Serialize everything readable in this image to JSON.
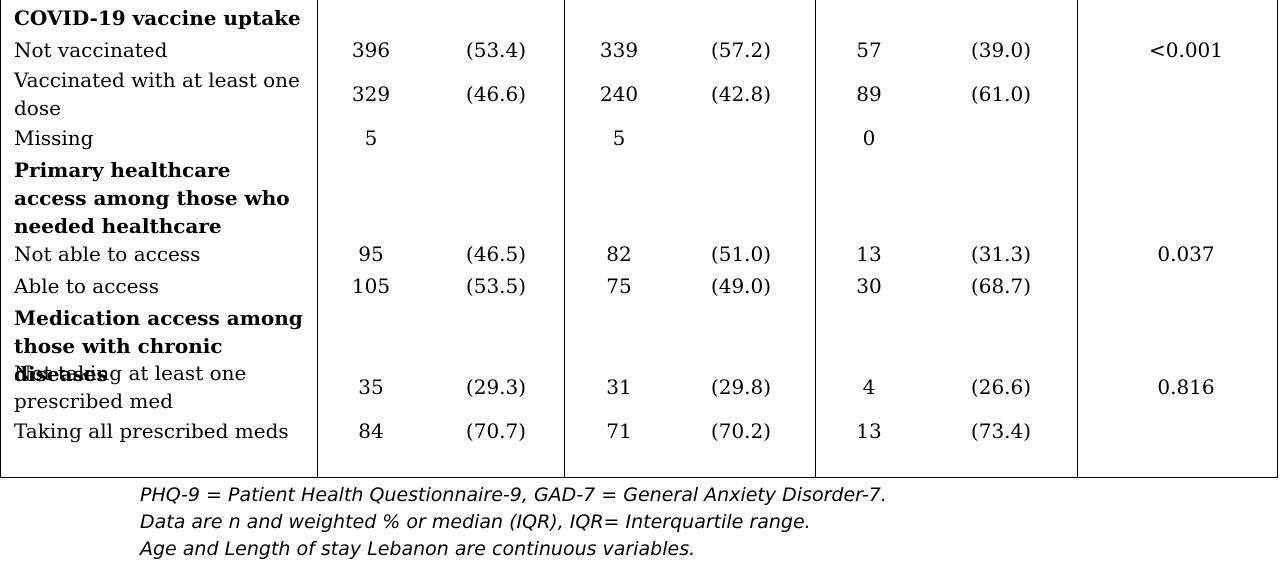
{
  "sections": [
    {
      "heading": "COVID-19 vaccine uptake",
      "rows": [
        {
          "label": "Not vaccinated",
          "n1": "396",
          "p1": "(53.4)",
          "n2": "339",
          "p2": "(57.2)",
          "n3": "57",
          "p3": "(39.0)",
          "pval": "<0.001"
        },
        {
          "label": "Vaccinated with at least one dose",
          "n1": "329",
          "p1": "(46.6)",
          "n2": "240",
          "p2": "(42.8)",
          "n3": "89",
          "p3": "(61.0)",
          "pval": ""
        },
        {
          "label": "Missing",
          "n1": "5",
          "p1": "",
          "n2": "5",
          "p2": "",
          "n3": "0",
          "p3": "",
          "pval": ""
        }
      ]
    },
    {
      "heading": "Primary healthcare access among those who needed healthcare",
      "rows": [
        {
          "label": "Not able to access",
          "n1": "95",
          "p1": "(46.5)",
          "n2": "82",
          "p2": "(51.0)",
          "n3": "13",
          "p3": "(31.3)",
          "pval": "0.037"
        },
        {
          "label": "Able to access",
          "n1": "105",
          "p1": "(53.5)",
          "n2": "75",
          "p2": "(49.0)",
          "n3": "30",
          "p3": "(68.7)",
          "pval": ""
        }
      ]
    },
    {
      "heading": "Medication access among those with chronic diseases",
      "rows": [
        {
          "label": "Not taking at least one prescribed med",
          "n1": "35",
          "p1": "(29.3)",
          "n2": "31",
          "p2": "(29.8)",
          "n3": "4",
          "p3": "(26.6)",
          "pval": "0.816"
        },
        {
          "label": "Taking all prescribed meds",
          "n1": "84",
          "p1": "(70.7)",
          "n2": "71",
          "p2": "(70.2)",
          "n3": "13",
          "p3": "(73.4)",
          "pval": ""
        }
      ]
    }
  ],
  "footnotes": [
    "PHQ-9 = Patient Health Questionnaire-9, GAD-7 = General Anxiety Disorder-7.",
    "Data are n and weighted % or median (IQR), IQR= Interquartile range.",
    "Age and Length of stay Lebanon are continuous variables."
  ]
}
